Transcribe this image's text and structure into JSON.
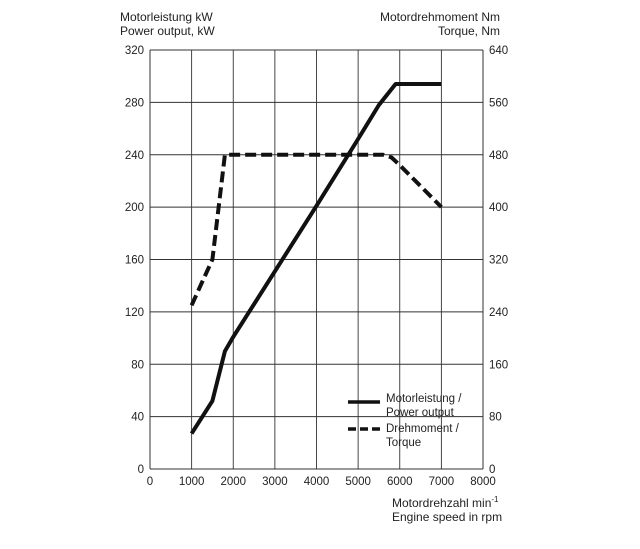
{
  "chart_data": {
    "type": "line",
    "left_axis": {
      "label_line1": "Motorleistung kW",
      "label_line2": "Power output, kW",
      "ylim": [
        0,
        320
      ],
      "ticks": [
        0,
        40,
        80,
        120,
        160,
        200,
        240,
        280,
        320
      ]
    },
    "right_axis": {
      "label_line1": "Motordrehmoment Nm",
      "label_line2": "Torque, Nm",
      "ylim": [
        0,
        640
      ],
      "ticks": [
        0,
        80,
        160,
        240,
        320,
        400,
        480,
        560,
        640
      ]
    },
    "x_axis": {
      "label_line1": "Motordrehzahl min",
      "label_sup": "-1",
      "label_line2": "Engine speed in rpm",
      "xlim": [
        0,
        8000
      ],
      "ticks": [
        0,
        1000,
        2000,
        3000,
        4000,
        5000,
        6000,
        7000,
        8000
      ]
    },
    "grid": true,
    "legend_position": "bottom-right",
    "series": [
      {
        "name_line1": "Motorleistung /",
        "name_line2": "Power output",
        "axis": "left",
        "style": "solid",
        "x": [
          1000,
          1500,
          1800,
          2000,
          3000,
          4000,
          5000,
          5500,
          5900,
          7000
        ],
        "y": [
          27,
          52,
          90,
          101,
          151,
          201,
          252,
          278,
          294,
          294
        ]
      },
      {
        "name_line1": "Drehmoment /",
        "name_line2": "Torque",
        "axis": "right",
        "style": "dashed",
        "x": [
          1000,
          1500,
          1800,
          2000,
          5600,
          5800,
          6000,
          7000
        ],
        "y": [
          250,
          320,
          480,
          480,
          480,
          476,
          464,
          400
        ]
      }
    ]
  }
}
